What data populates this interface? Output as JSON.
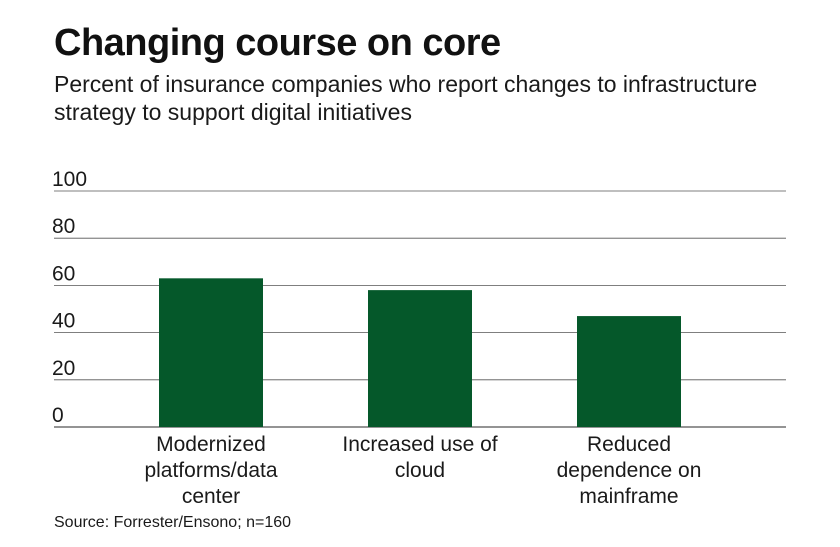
{
  "header": {
    "title": "Changing course on core",
    "subtitle": "Percent of insurance companies who report changes to infrastructure strategy to support digital initiatives"
  },
  "footer": {
    "source": "Source: Forrester/Ensono; n=160"
  },
  "colors": {
    "bar": "#05582a",
    "grid": "#555555"
  },
  "chart_data": {
    "type": "bar",
    "categories": [
      "Modernized platforms/data center",
      "Increased use of cloud",
      "Reduced dependence on mainframe"
    ],
    "category_lines": [
      [
        "Modernized",
        "platforms/data",
        "center"
      ],
      [
        "Increased use of",
        "cloud"
      ],
      [
        "Reduced",
        "dependence on",
        "mainframe"
      ]
    ],
    "values": [
      63,
      58,
      47
    ],
    "ylim": [
      0,
      100
    ],
    "yticks": [
      0,
      20,
      40,
      60,
      80,
      100
    ],
    "title": "Changing course on core",
    "xlabel": "",
    "ylabel": "",
    "grid": true,
    "legend": "none"
  }
}
